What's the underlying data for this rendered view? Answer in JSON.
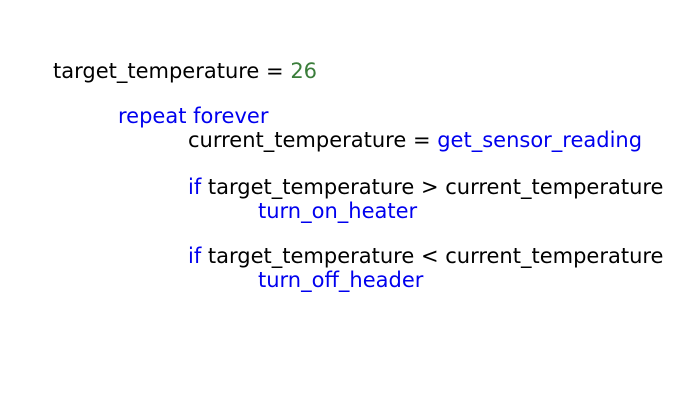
{
  "colors": {
    "background": "#ffffff",
    "text": "#000000",
    "keyword": "#0000ee",
    "number": "#3a7d3a"
  },
  "code": {
    "line1": {
      "var": "target_temperature",
      "op": " = ",
      "value": "26"
    },
    "line2": {
      "kw1": "repeat",
      "kw2": "forever"
    },
    "line3": {
      "var": "current_temperature",
      "op": " = ",
      "call": "get_sensor_reading"
    },
    "line4": {
      "kw": "if",
      "cond": "target_temperature > current_temperature"
    },
    "line5": {
      "call": "turn_on_heater"
    },
    "line6": {
      "kw": "if",
      "cond": "target_temperature < current_temperature"
    },
    "line7": {
      "call": "turn_off_header"
    }
  }
}
